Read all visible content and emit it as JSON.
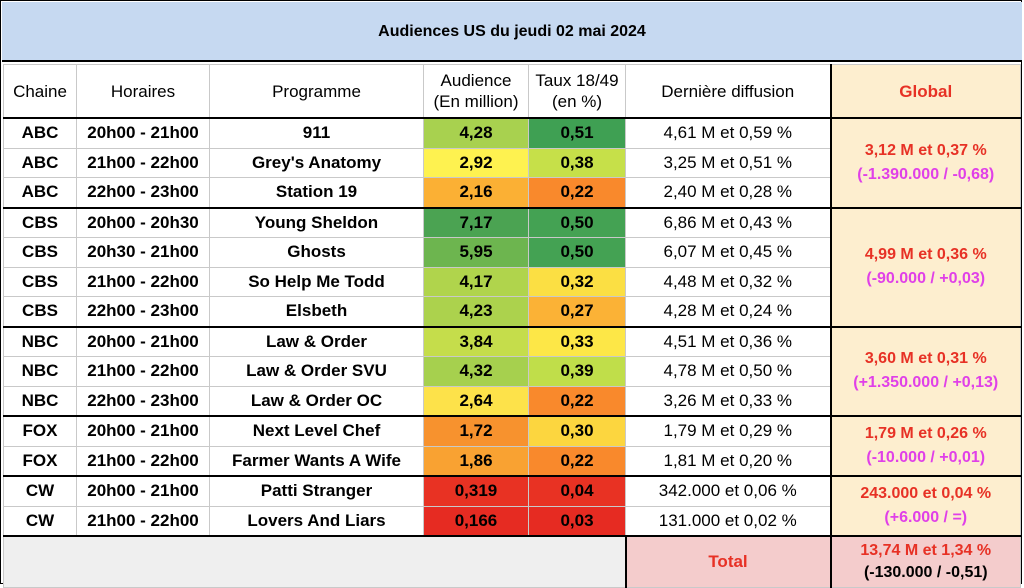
{
  "title": "Audiences US du jeudi 02 mai 2024",
  "headers": {
    "channel": "Chaine",
    "time": "Horaires",
    "program": "Programme",
    "audience_1": "Audience",
    "audience_2": "(En million)",
    "rate_1": "Taux 18/49",
    "rate_2": "(en %)",
    "last": "Dernière diffusion",
    "global": "Global"
  },
  "rows": [
    {
      "channel": "ABC",
      "time": "20h00 - 21h00",
      "program": "911",
      "audience": "4,28",
      "audience_color": "#a8d14f",
      "rate": "0,51",
      "rate_color": "#3fa053",
      "last": "4,61 M et 0,59 %"
    },
    {
      "channel": "ABC",
      "time": "21h00 - 22h00",
      "program": "Grey's Anatomy",
      "audience": "2,92",
      "audience_color": "#fef250",
      "rate": "0,38",
      "rate_color": "#c6e049",
      "last": "3,25 M et 0,51 %"
    },
    {
      "channel": "ABC",
      "time": "22h00 - 23h00",
      "program": "Station 19",
      "audience": "2,16",
      "audience_color": "#fbb034",
      "rate": "0,22",
      "rate_color": "#f9892c",
      "last": "2,40 M et 0,28 %"
    },
    {
      "channel": "CBS",
      "time": "20h00 - 20h30",
      "program": "Young Sheldon",
      "audience": "7,17",
      "audience_color": "#4ba352",
      "rate": "0,50",
      "rate_color": "#44a253",
      "last": "6,86 M et 0,43 %"
    },
    {
      "channel": "CBS",
      "time": "20h30 - 21h00",
      "program": "Ghosts",
      "audience": "5,95",
      "audience_color": "#6db54f",
      "rate": "0,50",
      "rate_color": "#44a253",
      "last": "6,07 M et 0,45 %"
    },
    {
      "channel": "CBS",
      "time": "21h00 - 22h00",
      "program": "So Help Me Todd",
      "audience": "4,17",
      "audience_color": "#b0d44c",
      "rate": "0,32",
      "rate_color": "#fbdf43",
      "last": "4,48 M et 0,32 %"
    },
    {
      "channel": "CBS",
      "time": "22h00 - 23h00",
      "program": "Elsbeth",
      "audience": "4,23",
      "audience_color": "#acd24d",
      "rate": "0,27",
      "rate_color": "#fbb236",
      "last": "4,28 M et 0,24 %"
    },
    {
      "channel": "NBC",
      "time": "20h00 - 21h00",
      "program": "Law & Order",
      "audience": "3,84",
      "audience_color": "#c5dd4b",
      "rate": "0,33",
      "rate_color": "#fde747",
      "last": "4,51 M et 0,36 %"
    },
    {
      "channel": "NBC",
      "time": "21h00 - 22h00",
      "program": "Law & Order SVU",
      "audience": "4,32",
      "audience_color": "#a6d04e",
      "rate": "0,39",
      "rate_color": "#c0de4a",
      "last": "4,78 M et 0,50 %"
    },
    {
      "channel": "NBC",
      "time": "22h00 - 23h00",
      "program": "Law & Order OC",
      "audience": "2,64",
      "audience_color": "#fde24a",
      "rate": "0,22",
      "rate_color": "#f9892c",
      "last": "3,26 M et 0,33 %"
    },
    {
      "channel": "FOX",
      "time": "20h00 - 21h00",
      "program": "Next Level Chef",
      "audience": "1,72",
      "audience_color": "#f7922e",
      "rate": "0,30",
      "rate_color": "#fcd63f",
      "last": "1,79 M et 0,29 %"
    },
    {
      "channel": "FOX",
      "time": "21h00 - 22h00",
      "program": "Farmer Wants A Wife",
      "audience": "1,86",
      "audience_color": "#f9a232",
      "rate": "0,22",
      "rate_color": "#f9892c",
      "last": "1,81 M et 0,20 %"
    },
    {
      "channel": "CW",
      "time": "20h00 - 21h00",
      "program": "Patti Stranger",
      "audience": "0,319",
      "audience_color": "#e83223",
      "rate": "0,04",
      "rate_color": "#e83223",
      "last": "342.000 et 0,06 %"
    },
    {
      "channel": "CW",
      "time": "21h00 - 22h00",
      "program": "Lovers And Liars",
      "audience": "0,166",
      "audience_color": "#e62b22",
      "rate": "0,03",
      "rate_color": "#e62b22",
      "last": "131.000 et 0,02 %"
    }
  ],
  "globals": {
    "abc": {
      "main": "3,12 M et 0,37 %",
      "sub": "(-1.390.000 / -0,68)"
    },
    "cbs": {
      "main": "4,99 M et 0,36 %",
      "sub": "(-90.000 / +0,03)"
    },
    "nbc": {
      "main": "3,60 M et 0,31 %",
      "sub": "(+1.350.000 / +0,13)"
    },
    "fox": {
      "main": "1,79 M et 0,26 %",
      "sub": "(-10.000 / +0,01)"
    },
    "cw": {
      "main": "243.000 et 0,04 %",
      "sub": "(+6.000 / =)"
    }
  },
  "total": {
    "label": "Total",
    "main": "13,74 M et 1,34 %",
    "sub": "(-130.000 / -0,51)"
  }
}
